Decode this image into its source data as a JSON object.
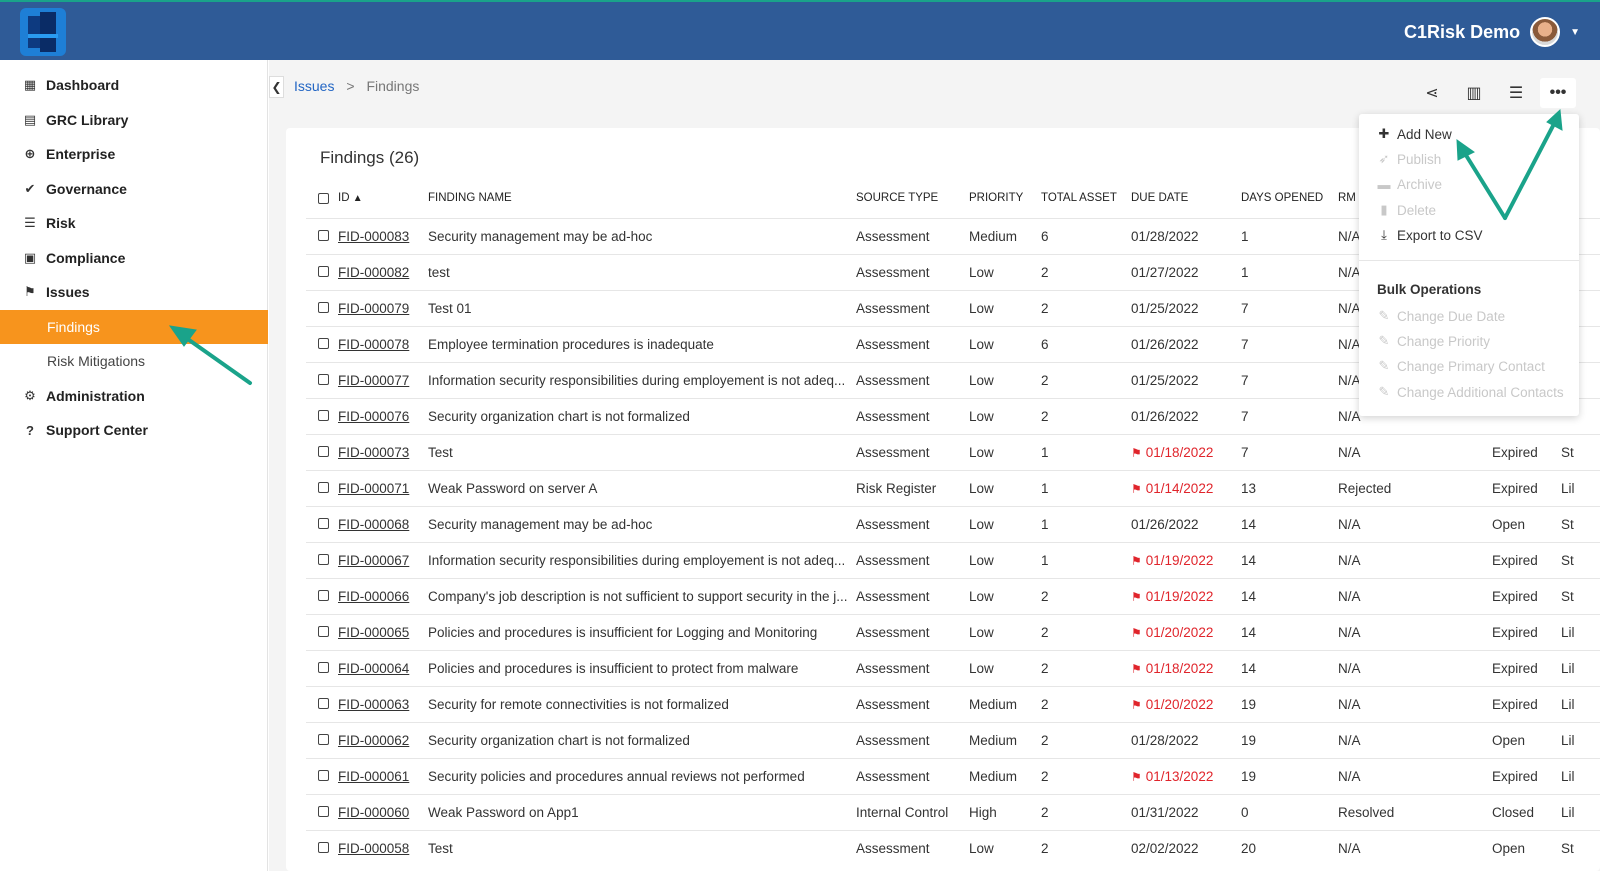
{
  "app": {
    "user_name": "C1Risk Demo"
  },
  "sidebar": {
    "items": [
      {
        "label": "Dashboard",
        "icon": "dashboard-icon"
      },
      {
        "label": "GRC Library",
        "icon": "book-icon"
      },
      {
        "label": "Enterprise",
        "icon": "globe-icon"
      },
      {
        "label": "Governance",
        "icon": "check-double-icon"
      },
      {
        "label": "Risk",
        "icon": "list-icon"
      },
      {
        "label": "Compliance",
        "icon": "clipboard-check-icon"
      },
      {
        "label": "Issues",
        "icon": "flag-icon"
      },
      {
        "label": "Findings",
        "active": true
      },
      {
        "label": "Risk Mitigations"
      },
      {
        "label": "Administration",
        "icon": "gear-icon"
      },
      {
        "label": "Support Center",
        "icon": "question-circle-icon"
      }
    ]
  },
  "breadcrumb": {
    "parent": "Issues",
    "separator": ">",
    "current": "Findings"
  },
  "page": {
    "title": "Findings (26)"
  },
  "table": {
    "headers": [
      "ID",
      "FINDING NAME",
      "SOURCE TYPE",
      "PRIORITY",
      "TOTAL ASSET",
      "DUE DATE",
      "DAYS OPENED",
      "RM S"
    ],
    "rows": [
      {
        "id": "FID-000083",
        "name": "Security management may be ad-hoc",
        "source": "Assessment",
        "priority": "Medium",
        "assets": "6",
        "due": "01/28/2022",
        "overdue": false,
        "days": "1",
        "rm": "N/A",
        "status": "",
        "extra": ""
      },
      {
        "id": "FID-000082",
        "name": "test",
        "source": "Assessment",
        "priority": "Low",
        "assets": "2",
        "due": "01/27/2022",
        "overdue": false,
        "days": "1",
        "rm": "N/A",
        "status": "",
        "extra": ""
      },
      {
        "id": "FID-000079",
        "name": "Test 01",
        "source": "Assessment",
        "priority": "Low",
        "assets": "2",
        "due": "01/25/2022",
        "overdue": false,
        "days": "7",
        "rm": "N/A",
        "status": "",
        "extra": ""
      },
      {
        "id": "FID-000078",
        "name": "Employee termination procedures is inadequate",
        "source": "Assessment",
        "priority": "Low",
        "assets": "6",
        "due": "01/26/2022",
        "overdue": false,
        "days": "7",
        "rm": "N/A",
        "status": "",
        "extra": ""
      },
      {
        "id": "FID-000077",
        "name": "Information security responsibilities during employement is not adeq...",
        "source": "Assessment",
        "priority": "Low",
        "assets": "2",
        "due": "01/25/2022",
        "overdue": false,
        "days": "7",
        "rm": "N/A",
        "status": "",
        "extra": ""
      },
      {
        "id": "FID-000076",
        "name": "Security organization chart is not formalized",
        "source": "Assessment",
        "priority": "Low",
        "assets": "2",
        "due": "01/26/2022",
        "overdue": false,
        "days": "7",
        "rm": "N/A",
        "status": "",
        "extra": ""
      },
      {
        "id": "FID-000073",
        "name": "Test",
        "source": "Assessment",
        "priority": "Low",
        "assets": "1",
        "due": "01/18/2022",
        "overdue": true,
        "days": "7",
        "rm": "N/A",
        "status": "Expired",
        "extra": "St"
      },
      {
        "id": "FID-000071",
        "name": "Weak Password on server A",
        "source": "Risk Register",
        "priority": "Low",
        "assets": "1",
        "due": "01/14/2022",
        "overdue": true,
        "days": "13",
        "rm": "Rejected",
        "status": "Expired",
        "extra": "Lil"
      },
      {
        "id": "FID-000068",
        "name": "Security management may be ad-hoc",
        "source": "Assessment",
        "priority": "Low",
        "assets": "1",
        "due": "01/26/2022",
        "overdue": false,
        "days": "14",
        "rm": "N/A",
        "status": "Open",
        "extra": "St"
      },
      {
        "id": "FID-000067",
        "name": "Information security responsibilities during employement is not adeq...",
        "source": "Assessment",
        "priority": "Low",
        "assets": "1",
        "due": "01/19/2022",
        "overdue": true,
        "days": "14",
        "rm": "N/A",
        "status": "Expired",
        "extra": "St"
      },
      {
        "id": "FID-000066",
        "name": "Company's job description is not sufficient to support security in the j...",
        "source": "Assessment",
        "priority": "Low",
        "assets": "2",
        "due": "01/19/2022",
        "overdue": true,
        "days": "14",
        "rm": "N/A",
        "status": "Expired",
        "extra": "St"
      },
      {
        "id": "FID-000065",
        "name": "Policies and procedures is insufficient for Logging and Monitoring",
        "source": "Assessment",
        "priority": "Low",
        "assets": "2",
        "due": "01/20/2022",
        "overdue": true,
        "days": "14",
        "rm": "N/A",
        "status": "Expired",
        "extra": "Lil"
      },
      {
        "id": "FID-000064",
        "name": "Policies and procedures is insufficient to protect from malware",
        "source": "Assessment",
        "priority": "Low",
        "assets": "2",
        "due": "01/18/2022",
        "overdue": true,
        "days": "14",
        "rm": "N/A",
        "status": "Expired",
        "extra": "Lil"
      },
      {
        "id": "FID-000063",
        "name": "Security for remote connectivities is not formalized",
        "source": "Assessment",
        "priority": "Medium",
        "assets": "2",
        "due": "01/20/2022",
        "overdue": true,
        "days": "19",
        "rm": "N/A",
        "status": "Expired",
        "extra": "Lil"
      },
      {
        "id": "FID-000062",
        "name": "Security organization chart is not formalized",
        "source": "Assessment",
        "priority": "Medium",
        "assets": "2",
        "due": "01/28/2022",
        "overdue": false,
        "days": "19",
        "rm": "N/A",
        "status": "Open",
        "extra": "Lil"
      },
      {
        "id": "FID-000061",
        "name": "Security policies and procedures annual reviews not performed",
        "source": "Assessment",
        "priority": "Medium",
        "assets": "2",
        "due": "01/13/2022",
        "overdue": true,
        "days": "19",
        "rm": "N/A",
        "status": "Expired",
        "extra": "Lil"
      },
      {
        "id": "FID-000060",
        "name": "Weak Password on App1",
        "source": "Internal Control",
        "priority": "High",
        "assets": "2",
        "due": "01/31/2022",
        "overdue": false,
        "days": "0",
        "rm": "Resolved",
        "status": "Closed",
        "extra": "Lil"
      },
      {
        "id": "FID-000058",
        "name": "Test",
        "source": "Assessment",
        "priority": "Low",
        "assets": "2",
        "due": "02/02/2022",
        "overdue": false,
        "days": "20",
        "rm": "N/A",
        "status": "Open",
        "extra": "St"
      }
    ]
  },
  "menu": {
    "items": [
      {
        "label": "Add New",
        "icon": "plus-icon",
        "enabled": true
      },
      {
        "label": "Publish",
        "icon": "rocket-icon",
        "enabled": false
      },
      {
        "label": "Archive",
        "icon": "archive-icon",
        "enabled": false
      },
      {
        "label": "Delete",
        "icon": "trash-icon",
        "enabled": false
      },
      {
        "label": "Export to CSV",
        "icon": "download-icon",
        "enabled": true
      }
    ],
    "bulk_header": "Bulk Operations",
    "bulk_items": [
      {
        "label": "Change Due Date",
        "icon": "edit-icon",
        "enabled": false
      },
      {
        "label": "Change Priority",
        "icon": "edit-icon",
        "enabled": false
      },
      {
        "label": "Change Primary Contact",
        "icon": "edit-icon",
        "enabled": false
      },
      {
        "label": "Change Additional Contacts",
        "icon": "edit-icon",
        "enabled": false
      }
    ]
  },
  "colors": {
    "topbar": "#2f5b97",
    "active": "#f7941d",
    "overdue": "#e0242b",
    "link": "#2366c4",
    "annotation": "#1aa38a"
  }
}
